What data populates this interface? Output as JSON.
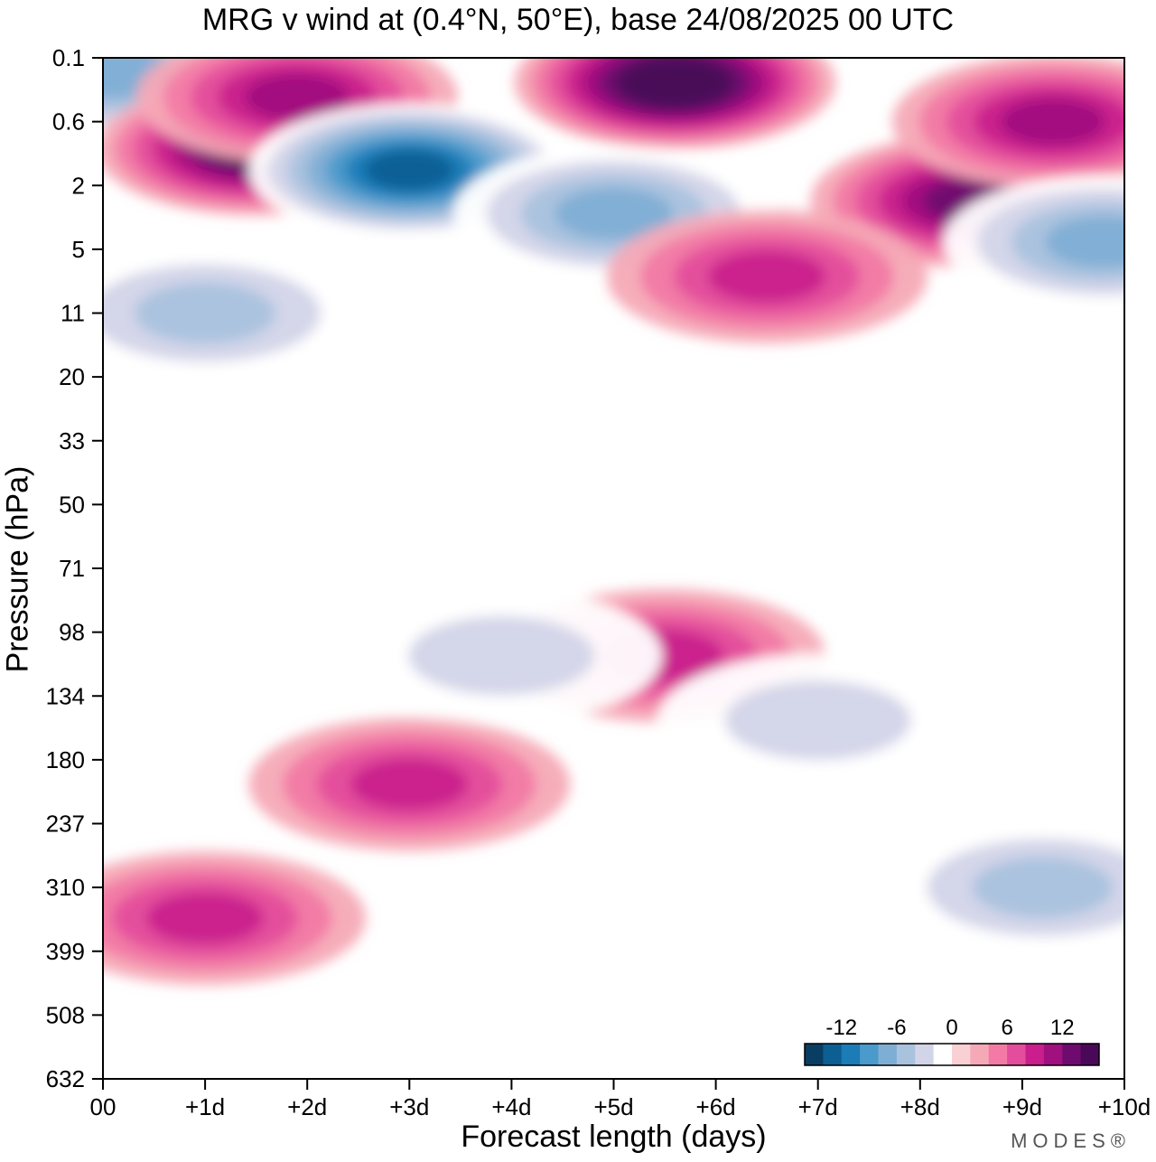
{
  "chart_data": {
    "type": "heatmap",
    "title": "MRG v wind at (0.4°N, 50°E),  base 24/08/2025  00 UTC",
    "xlabel": "Forecast length (days)",
    "ylabel": "Pressure (hPa)",
    "x_ticks": [
      "00",
      "+1d",
      "+2d",
      "+3d",
      "+4d",
      "+5d",
      "+6d",
      "+7d",
      "+8d",
      "+9d",
      "+10d"
    ],
    "y_ticks": [
      "0.1",
      "0.6",
      "2",
      "5",
      "11",
      "20",
      "33",
      "50",
      "71",
      "98",
      "134",
      "180",
      "237",
      "310",
      "399",
      "508",
      "632"
    ],
    "xlim": [
      0,
      10
    ],
    "colorbar": {
      "tick_labels": [
        "-12",
        "-6",
        "0",
        "6",
        "12"
      ],
      "tick_values": [
        -12,
        -6,
        0,
        6,
        12
      ],
      "levels": [
        -16,
        -14,
        -12,
        -10,
        -8,
        -6,
        -4,
        -2,
        2,
        4,
        6,
        8,
        10,
        12,
        14,
        16
      ],
      "colors": [
        "#0a3d62",
        "#0d5f93",
        "#1b7cb7",
        "#4a9acb",
        "#7faed4",
        "#a9c2de",
        "#d2d4e8",
        "#ffffff",
        "#f9d0d3",
        "#f5a9b6",
        "#f27aa5",
        "#e34d9b",
        "#c91e8c",
        "#a0107f",
        "#6f0a6f",
        "#4a0858"
      ]
    },
    "features": [
      {
        "label": "neg-top-left",
        "value": -9,
        "x": 0.1,
        "p": 0.15
      },
      {
        "label": "strat-pos-1d",
        "value": 14,
        "x": 1.5,
        "p": 1.0
      },
      {
        "label": "strat-pos-1.8d",
        "value": 10,
        "x": 1.9,
        "p": 0.3
      },
      {
        "label": "strat-neg-3d",
        "value": -15,
        "x": 3.0,
        "p": 1.5
      },
      {
        "label": "strat-neg-5d",
        "value": -9,
        "x": 5.0,
        "p": 3.0
      },
      {
        "label": "strat-pos-6d",
        "value": 16,
        "x": 5.6,
        "p": 0.2
      },
      {
        "label": "strat-pos-8.5d",
        "value": 12,
        "x": 8.5,
        "p": 2.5
      },
      {
        "label": "strat-pos-9d-top",
        "value": 10,
        "x": 9.3,
        "p": 0.6
      },
      {
        "label": "neg-10d-5hPa",
        "value": -8,
        "x": 9.8,
        "p": 4.5
      },
      {
        "label": "pos-6d-7hPa",
        "value": 8,
        "x": 6.5,
        "p": 7.0
      },
      {
        "label": "neg-11hPa-band",
        "value": -6,
        "x": 1.0,
        "p": 11
      },
      {
        "label": "trop-pos-2-4d",
        "value": 8,
        "x": 3.0,
        "p": 200
      },
      {
        "label": "trop-pos-5.5d",
        "value": 8,
        "x": 5.5,
        "p": 110
      },
      {
        "label": "neg-4d-110hPa",
        "value": -5,
        "x": 3.9,
        "p": 110
      },
      {
        "label": "pos-1d-350hPa",
        "value": 8,
        "x": 1.0,
        "p": 350
      },
      {
        "label": "neg-9d-300hPa",
        "value": -7,
        "x": 9.2,
        "p": 310
      },
      {
        "label": "neg-7d-150hPa",
        "value": -5,
        "x": 7.0,
        "p": 150
      }
    ]
  },
  "brand": "MODES®"
}
